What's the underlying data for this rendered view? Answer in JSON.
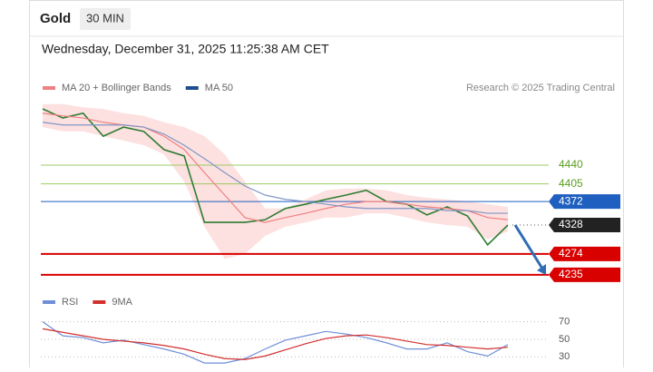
{
  "header": {
    "title": "Gold",
    "timeframe": "30 MIN",
    "timestamp": "Wednesday, December 31, 2025 11:25:38 AM CET"
  },
  "chart_data": [
    {
      "type": "line",
      "credit": "Research © 2025 Trading Central",
      "ylim": [
        4223,
        4562
      ],
      "series": [
        {
          "color": "#2e7d32",
          "values": [
            4545,
            4528,
            4537,
            4494,
            4511,
            4503,
            4469,
            4457,
            4333,
            4333,
            4333,
            4338,
            4359,
            4367,
            4376,
            4384,
            4393,
            4372,
            4367,
            4347,
            4362,
            4345,
            4291,
            4328
          ]
        },
        {
          "name": "MA 20 + Bollinger Bands",
          "color": "#f08080",
          "band_color": "#fde0e0",
          "values": [
            4537,
            4532,
            4528,
            4520,
            4515,
            4511,
            4494,
            4469,
            4426,
            4384,
            4342,
            4333,
            4342,
            4350,
            4359,
            4367,
            4372,
            4372,
            4367,
            4362,
            4359,
            4355,
            4342,
            4338
          ],
          "band": {
            "upper": [
              4554,
              4554,
              4548,
              4545,
              4537,
              4532,
              4520,
              4511,
              4494,
              4460,
              4409,
              4359,
              4359,
              4376,
              4393,
              4396,
              4396,
              4393,
              4384,
              4379,
              4376,
              4372,
              4367,
              4362
            ],
            "lower": [
              4511,
              4503,
              4503,
              4494,
              4486,
              4477,
              4460,
              4409,
              4325,
              4265,
              4274,
              4308,
              4325,
              4333,
              4342,
              4342,
              4350,
              4350,
              4342,
              4333,
              4328,
              4325,
              4301,
              4316
            ]
          }
        },
        {
          "name": "MA 50",
          "color": "#7f97c6",
          "legend_color": "#1f4e8c",
          "values": [
            4520,
            4515,
            4515,
            4515,
            4515,
            4511,
            4498,
            4477,
            4452,
            4426,
            4401,
            4384,
            4376,
            4372,
            4367,
            4362,
            4359,
            4359,
            4359,
            4359,
            4355,
            4355,
            4350,
            4350
          ]
        }
      ],
      "levels": [
        {
          "value": 4440,
          "color": "#9ccc65",
          "text_color": "#5a9e1e",
          "badge": false,
          "dotted": false
        },
        {
          "value": 4405,
          "color": "#9ccc65",
          "text_color": "#5a9e1e",
          "badge": false,
          "dotted": false
        },
        {
          "value": 4372,
          "color": "#1f5fbf",
          "text_color": "#ffffff",
          "badge": true,
          "dotted": false
        },
        {
          "value": 4328,
          "color": "#222222",
          "text_color": "#ffffff",
          "badge": true,
          "dotted": true
        },
        {
          "value": 4274,
          "color": "#d90000",
          "text_color": "#ffffff",
          "badge": true,
          "dotted": false
        },
        {
          "value": 4235,
          "color": "#d90000",
          "text_color": "#ffffff",
          "badge": true,
          "dotted": false
        }
      ]
    },
    {
      "type": "line",
      "ylim": [
        20,
        80
      ],
      "yticks": [
        30,
        50,
        70
      ],
      "series": [
        {
          "name": "RSI",
          "color": "#6f8fd8",
          "values": [
            70,
            54,
            52,
            46,
            49,
            44,
            39,
            33,
            23,
            23,
            28,
            39,
            49,
            54,
            59,
            56,
            52,
            46,
            39,
            39,
            46,
            36,
            31,
            44
          ]
        },
        {
          "name": "9MA",
          "color": "#d32f2f",
          "values": [
            62,
            58,
            54,
            50,
            48,
            46,
            43,
            39,
            33,
            28,
            27,
            31,
            38,
            45,
            51,
            54,
            55,
            52,
            48,
            44,
            43,
            41,
            39,
            41
          ]
        }
      ]
    }
  ]
}
